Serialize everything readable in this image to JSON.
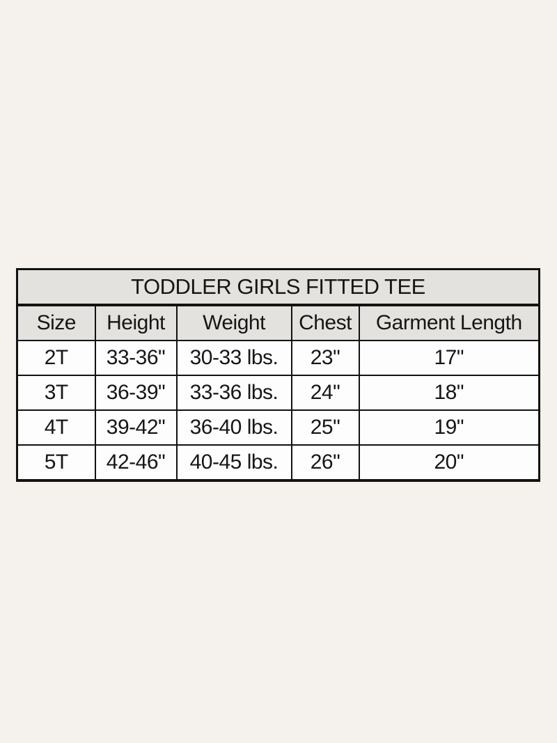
{
  "page": {
    "background_color": "#f5f2ee"
  },
  "chart_data": {
    "type": "table",
    "title": "TODDLER GIRLS FITTED TEE",
    "columns": [
      "Size",
      "Height",
      "Weight",
      "Chest",
      "Garment Length"
    ],
    "rows": [
      [
        "2T",
        "33-36\"",
        "30-33 lbs.",
        "23\"",
        "17\""
      ],
      [
        "3T",
        "36-39\"",
        "33-36 lbs.",
        "24\"",
        "18\""
      ],
      [
        "4T",
        "39-42\"",
        "36-40 lbs.",
        "25\"",
        "19\""
      ],
      [
        "5T",
        "42-46\"",
        "40-45 lbs.",
        "26\"",
        "20\""
      ]
    ],
    "layout": {
      "legend": "none",
      "grid": "full-borders"
    },
    "colors": {
      "header_background": "#e3e2df",
      "row_background": "#fdfdfd",
      "border": "#121212",
      "text": "#161616"
    }
  }
}
